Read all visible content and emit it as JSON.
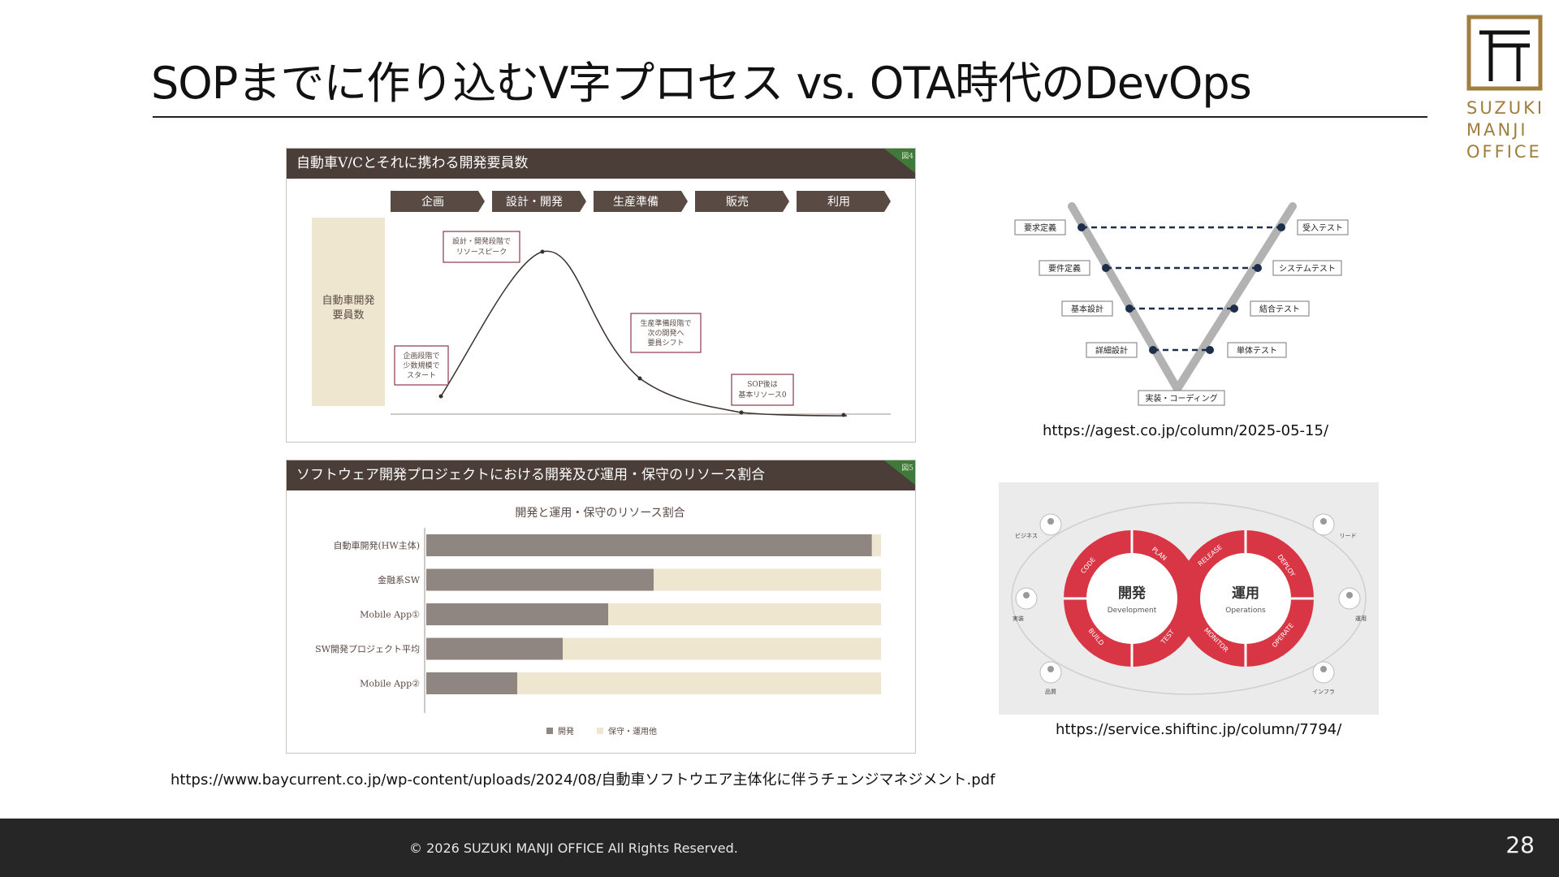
{
  "title": "SOPまでに作り込むV字プロセス vs. OTA時代のDevOps",
  "logo": {
    "line1": "SUZUKI",
    "line2": "MANJI",
    "line3": "OFFICE",
    "color": "#a07e3e"
  },
  "fig4": {
    "header": "自動車V/Cとそれに携わる開発要員数",
    "tag": "図4",
    "phases": [
      "企画",
      "設計・開発",
      "生産準備",
      "販売",
      "利用"
    ],
    "ylabel_line1": "自動車開発",
    "ylabel_line2": "要員数",
    "callouts": [
      {
        "lines": [
          "設計・開発段階で",
          "リソースピーク"
        ]
      },
      {
        "lines": [
          "企画段階で",
          "少数規模で",
          "スタート"
        ]
      },
      {
        "lines": [
          "生産準備段階で",
          "次の開発へ",
          "要員シフト"
        ]
      },
      {
        "lines": [
          "SOP後は",
          "基本リソース0"
        ]
      }
    ]
  },
  "fig5": {
    "header": "ソフトウェア開発プロジェクトにおける開発及び運用・保守のリソース割合",
    "tag": "図5",
    "chart_data": {
      "type": "bar",
      "orientation": "horizontal",
      "stacked": true,
      "title": "開発と運用・保守のリソース割合",
      "categories": [
        "自動車開発(HW主体)",
        "金融系SW",
        "Mobile App①",
        "SW開発プロジェクト平均",
        "Mobile App②"
      ],
      "series": [
        {
          "name": "開発",
          "values": [
            98,
            50,
            40,
            30,
            20
          ],
          "color": "#8f8682"
        },
        {
          "name": "保守・運用他",
          "values": [
            2,
            50,
            60,
            70,
            80
          ],
          "color": "#efe6cf"
        }
      ],
      "xlim": [
        0,
        100
      ],
      "legend": "bottom"
    }
  },
  "vmodel": {
    "left": [
      "要求定義",
      "要件定義",
      "基本設計",
      "詳細設計"
    ],
    "right": [
      "受入テスト",
      "システムテスト",
      "結合テスト",
      "単体テスト"
    ],
    "bottom": "実装・コーディング",
    "caption": "https://agest.co.jp/column/2025-05-15/"
  },
  "devops": {
    "dev_title": "開発",
    "dev_sub": "Development",
    "ops_title": "運用",
    "ops_sub": "Operations",
    "dev_steps": [
      "PLAN",
      "CODE",
      "BUILD",
      "TEST"
    ],
    "ops_steps": [
      "RELEASE",
      "DEPLOY",
      "OPERATE",
      "MONITOR"
    ],
    "roles": [
      "ビジネス",
      "リード",
      "実装",
      "運用",
      "品質",
      "インフラ"
    ],
    "caption": "https://service.shiftinc.jp/column/7794/"
  },
  "source_caption": "https://www.baycurrent.co.jp/wp-content/uploads/2024/08/自動車ソフトウエア主体化に伴うチェンジマネジメント.pdf",
  "footer": {
    "copyright": "© 2026  SUZUKI MANJI OFFICE All Rights Reserved.",
    "page": "28"
  }
}
